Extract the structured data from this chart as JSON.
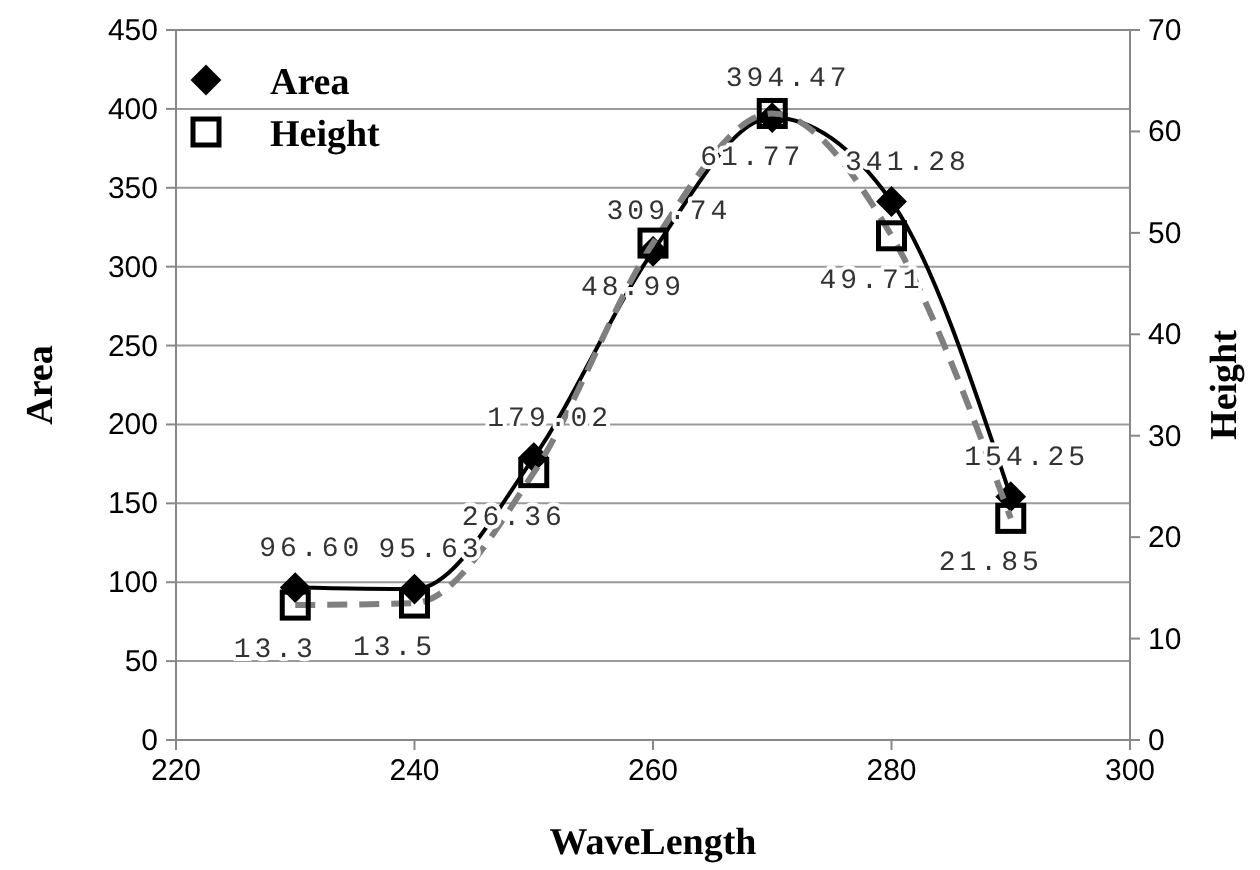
{
  "chart_data": {
    "type": "line",
    "xlabel": "WaveLength",
    "ylabel": "Area",
    "y2label": "Height",
    "x": [
      230,
      240,
      250,
      260,
      270,
      280,
      290
    ],
    "series": [
      {
        "name": "Area",
        "color": "#000000",
        "marker": "diamond",
        "line_style": "solid",
        "values": [
          96.6,
          95.63,
          179.02,
          309.74,
          394.47,
          341.28,
          154.25
        ],
        "value_labels": [
          "96.60",
          "95.63",
          "179.02",
          "309.74",
          "394.47",
          "341.28",
          "154.25"
        ]
      },
      {
        "name": "Height",
        "color": "#7f7f7f",
        "marker": "square",
        "line_style": "dashed",
        "axis": "y2",
        "values": [
          13.3,
          13.5,
          26.36,
          48.99,
          61.77,
          49.71,
          21.85
        ],
        "value_labels": [
          "13.3",
          "13.5",
          "26.36",
          "48.99",
          "61.77",
          "49.71",
          "21.85"
        ]
      }
    ],
    "xlim": [
      220,
      300
    ],
    "xticks": [
      220,
      240,
      260,
      280,
      300
    ],
    "ylim": [
      0,
      450
    ],
    "yticks": [
      0,
      50,
      100,
      150,
      200,
      250,
      300,
      350,
      400,
      450
    ],
    "y2lim": [
      0,
      70
    ],
    "y2ticks": [
      0,
      10,
      20,
      30,
      40,
      50,
      60,
      70
    ],
    "grid": "y",
    "legend": "top left"
  }
}
